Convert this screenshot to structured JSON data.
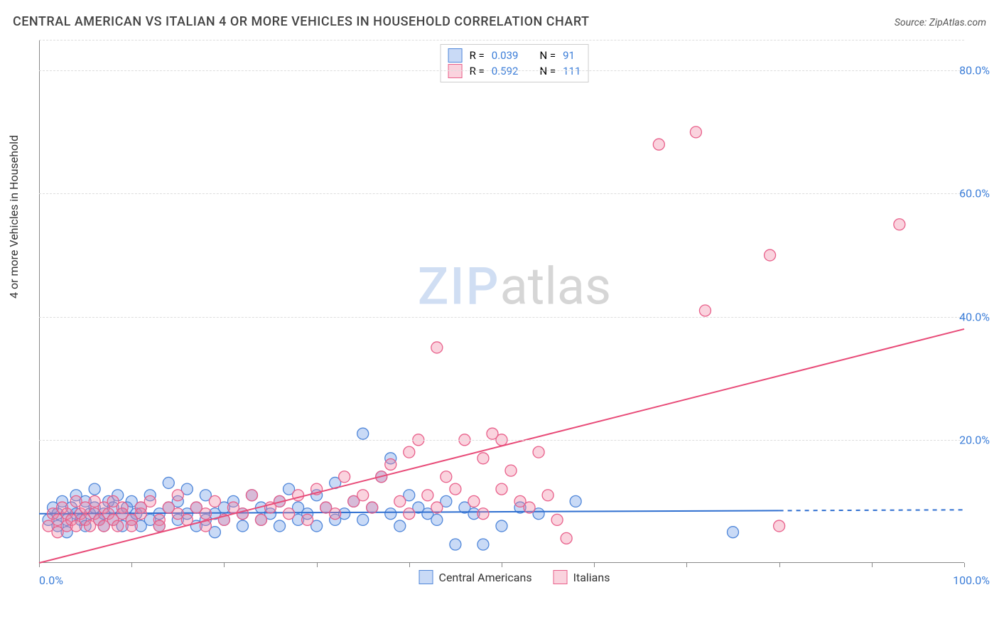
{
  "title": "CENTRAL AMERICAN VS ITALIAN 4 OR MORE VEHICLES IN HOUSEHOLD CORRELATION CHART",
  "source": "Source: ZipAtlas.com",
  "y_axis_label": "4 or more Vehicles in Household",
  "watermark_a": "ZIP",
  "watermark_b": "atlas",
  "chart": {
    "type": "scatter",
    "xlim": [
      0,
      100
    ],
    "ylim": [
      0,
      85
    ],
    "x_ticks": [
      0,
      10,
      20,
      30,
      40,
      50,
      60,
      70,
      80,
      90,
      100
    ],
    "y_gridlines": [
      20,
      40,
      60,
      80,
      85
    ],
    "y_tick_labels": [
      {
        "v": 20,
        "label": "20.0%"
      },
      {
        "v": 40,
        "label": "40.0%"
      },
      {
        "v": 60,
        "label": "60.0%"
      },
      {
        "v": 80,
        "label": "80.0%"
      }
    ],
    "x_start_label": "0.0%",
    "x_end_label": "100.0%",
    "background_color": "#ffffff",
    "grid_color": "#dddddd",
    "axis_color": "#888888",
    "tick_label_color": "#3b7dd8",
    "marker_radius": 8,
    "marker_stroke_width": 1.3,
    "trend_line_width": 2,
    "series": [
      {
        "id": "central_americans",
        "label": "Central Americans",
        "fill": "rgba(100,150,230,0.35)",
        "stroke": "#4f86d9",
        "trend_color": "#2f6fd0",
        "trend": {
          "x1": 0,
          "y1": 8.0,
          "x2": 80,
          "y2": 8.5
        },
        "trend_dash_after_x": 80,
        "R": "0.039",
        "N": "91",
        "points": [
          [
            1,
            7
          ],
          [
            1.5,
            9
          ],
          [
            2,
            6
          ],
          [
            2,
            8
          ],
          [
            2.5,
            10
          ],
          [
            3,
            7
          ],
          [
            3,
            5
          ],
          [
            3.5,
            9
          ],
          [
            4,
            8
          ],
          [
            4,
            11
          ],
          [
            4.5,
            7
          ],
          [
            5,
            10
          ],
          [
            5,
            6
          ],
          [
            5.5,
            8
          ],
          [
            6,
            9
          ],
          [
            6,
            12
          ],
          [
            6.5,
            7
          ],
          [
            7,
            8
          ],
          [
            7,
            6
          ],
          [
            7.5,
            10
          ],
          [
            8,
            9
          ],
          [
            8,
            7
          ],
          [
            8.5,
            11
          ],
          [
            9,
            8
          ],
          [
            9,
            6
          ],
          [
            9.5,
            9
          ],
          [
            10,
            7
          ],
          [
            10,
            10
          ],
          [
            10.5,
            8
          ],
          [
            11,
            6
          ],
          [
            11,
            9
          ],
          [
            12,
            7
          ],
          [
            12,
            11
          ],
          [
            13,
            8
          ],
          [
            13,
            6
          ],
          [
            14,
            13
          ],
          [
            14,
            9
          ],
          [
            15,
            7
          ],
          [
            15,
            10
          ],
          [
            16,
            8
          ],
          [
            16,
            12
          ],
          [
            17,
            6
          ],
          [
            17,
            9
          ],
          [
            18,
            7
          ],
          [
            18,
            11
          ],
          [
            19,
            8
          ],
          [
            19,
            5
          ],
          [
            20,
            9
          ],
          [
            20,
            7
          ],
          [
            21,
            10
          ],
          [
            22,
            8
          ],
          [
            22,
            6
          ],
          [
            23,
            11
          ],
          [
            24,
            7
          ],
          [
            24,
            9
          ],
          [
            25,
            8
          ],
          [
            26,
            6
          ],
          [
            26,
            10
          ],
          [
            27,
            12
          ],
          [
            28,
            7
          ],
          [
            28,
            9
          ],
          [
            29,
            8
          ],
          [
            30,
            11
          ],
          [
            30,
            6
          ],
          [
            31,
            9
          ],
          [
            32,
            7
          ],
          [
            32,
            13
          ],
          [
            33,
            8
          ],
          [
            34,
            10
          ],
          [
            35,
            21
          ],
          [
            35,
            7
          ],
          [
            36,
            9
          ],
          [
            37,
            14
          ],
          [
            38,
            8
          ],
          [
            38,
            17
          ],
          [
            39,
            6
          ],
          [
            40,
            11
          ],
          [
            41,
            9
          ],
          [
            42,
            8
          ],
          [
            43,
            7
          ],
          [
            44,
            10
          ],
          [
            45,
            3
          ],
          [
            46,
            9
          ],
          [
            47,
            8
          ],
          [
            48,
            3
          ],
          [
            50,
            6
          ],
          [
            52,
            9
          ],
          [
            54,
            8
          ],
          [
            58,
            10
          ],
          [
            75,
            5
          ]
        ]
      },
      {
        "id": "italians",
        "label": "Italians",
        "fill": "rgba(240,130,160,0.35)",
        "stroke": "#e85f8a",
        "trend_color": "#e84b78",
        "trend": {
          "x1": 0,
          "y1": 0,
          "x2": 100,
          "y2": 38
        },
        "R": "0.592",
        "N": "111",
        "points": [
          [
            1,
            6
          ],
          [
            1.5,
            8
          ],
          [
            2,
            7
          ],
          [
            2,
            5
          ],
          [
            2.5,
            9
          ],
          [
            3,
            6
          ],
          [
            3,
            8
          ],
          [
            3.5,
            7
          ],
          [
            4,
            10
          ],
          [
            4,
            6
          ],
          [
            4.5,
            8
          ],
          [
            5,
            7
          ],
          [
            5,
            9
          ],
          [
            5.5,
            6
          ],
          [
            6,
            8
          ],
          [
            6,
            10
          ],
          [
            6.5,
            7
          ],
          [
            7,
            9
          ],
          [
            7,
            6
          ],
          [
            7.5,
            8
          ],
          [
            8,
            7
          ],
          [
            8,
            10
          ],
          [
            8.5,
            6
          ],
          [
            9,
            9
          ],
          [
            9,
            8
          ],
          [
            10,
            7
          ],
          [
            10,
            6
          ],
          [
            11,
            9
          ],
          [
            11,
            8
          ],
          [
            12,
            10
          ],
          [
            13,
            7
          ],
          [
            13,
            6
          ],
          [
            14,
            9
          ],
          [
            15,
            8
          ],
          [
            15,
            11
          ],
          [
            16,
            7
          ],
          [
            17,
            9
          ],
          [
            18,
            8
          ],
          [
            18,
            6
          ],
          [
            19,
            10
          ],
          [
            20,
            7
          ],
          [
            21,
            9
          ],
          [
            22,
            8
          ],
          [
            23,
            11
          ],
          [
            24,
            7
          ],
          [
            25,
            9
          ],
          [
            26,
            10
          ],
          [
            27,
            8
          ],
          [
            28,
            11
          ],
          [
            29,
            7
          ],
          [
            30,
            12
          ],
          [
            31,
            9
          ],
          [
            32,
            8
          ],
          [
            33,
            14
          ],
          [
            34,
            10
          ],
          [
            35,
            11
          ],
          [
            36,
            9
          ],
          [
            37,
            14
          ],
          [
            38,
            16
          ],
          [
            39,
            10
          ],
          [
            40,
            18
          ],
          [
            40,
            8
          ],
          [
            41,
            20
          ],
          [
            42,
            11
          ],
          [
            43,
            35
          ],
          [
            43,
            9
          ],
          [
            44,
            14
          ],
          [
            45,
            12
          ],
          [
            46,
            20
          ],
          [
            47,
            10
          ],
          [
            48,
            17
          ],
          [
            48,
            8
          ],
          [
            49,
            21
          ],
          [
            50,
            20
          ],
          [
            50,
            12
          ],
          [
            51,
            15
          ],
          [
            52,
            10
          ],
          [
            53,
            9
          ],
          [
            54,
            18
          ],
          [
            55,
            11
          ],
          [
            56,
            7
          ],
          [
            57,
            4
          ],
          [
            67,
            68
          ],
          [
            71,
            70
          ],
          [
            72,
            41
          ],
          [
            79,
            50
          ],
          [
            80,
            6
          ],
          [
            93,
            55
          ]
        ]
      }
    ]
  },
  "legend_top": {
    "R_label": "R =",
    "N_label": "N ="
  },
  "legend_bottom": [
    {
      "series": "central_americans"
    },
    {
      "series": "italians"
    }
  ]
}
